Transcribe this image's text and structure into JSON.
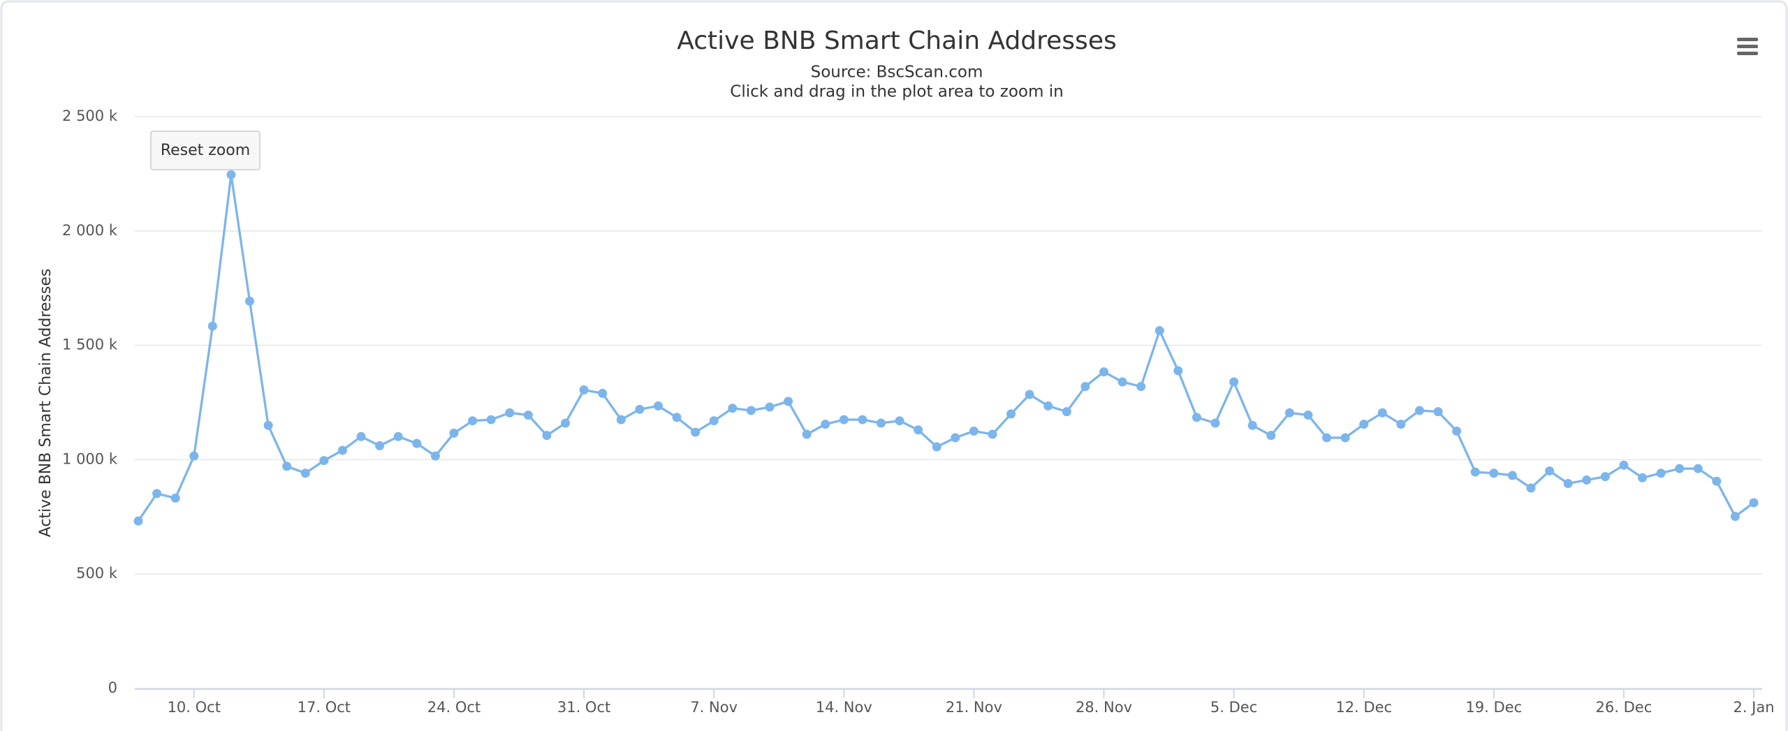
{
  "chart_data": {
    "type": "line",
    "title": "Active BNB Smart Chain Addresses",
    "subtitle": "Source: BscScan.com",
    "instruction": "Click and drag in the plot area to zoom in",
    "y_label": "Active BNB Smart Chain Addresses",
    "reset_button": "Reset zoom",
    "color": "#7cb5ec",
    "grid": true,
    "ylim": [
      0,
      2500
    ],
    "yticks": [
      0,
      {
        "value": 500,
        "label": "500 k"
      },
      {
        "value": 1000,
        "label": "1 000 k"
      },
      {
        "value": 1500,
        "label": "1 500 k"
      },
      {
        "value": 2000,
        "label": "2 000 k"
      },
      {
        "value": 2500,
        "label": "2 500 k"
      }
    ],
    "categories": [
      null,
      null,
      null,
      "10. Oct",
      null,
      null,
      null,
      null,
      null,
      null,
      "17. Oct",
      null,
      null,
      null,
      null,
      null,
      null,
      "24. Oct",
      null,
      null,
      null,
      null,
      null,
      null,
      "31. Oct",
      null,
      null,
      null,
      null,
      null,
      null,
      "7. Nov",
      null,
      null,
      null,
      null,
      null,
      null,
      "14. Nov",
      null,
      null,
      null,
      null,
      null,
      null,
      "21. Nov",
      null,
      null,
      null,
      null,
      null,
      null,
      "28. Nov",
      null,
      null,
      null,
      null,
      null,
      null,
      "5. Dec",
      null,
      null,
      null,
      null,
      null,
      null,
      "12. Dec",
      null,
      null,
      null,
      null,
      null,
      null,
      "19. Dec",
      null,
      null,
      null,
      null,
      null,
      null,
      "26. Dec",
      null,
      null,
      null,
      null,
      null,
      null,
      "2. Jan"
    ],
    "values": [
      732,
      852,
      832,
      1016,
      1584,
      2246,
      1693,
      1150,
      971,
      941,
      996,
      1041,
      1101,
      1061,
      1101,
      1071,
      1016,
      1116,
      1170,
      1175,
      1205,
      1195,
      1106,
      1160,
      1305,
      1290,
      1175,
      1220,
      1235,
      1185,
      1120,
      1170,
      1225,
      1215,
      1230,
      1255,
      1111,
      1155,
      1175,
      1175,
      1160,
      1170,
      1130,
      1056,
      1096,
      1125,
      1111,
      1200,
      1285,
      1235,
      1210,
      1320,
      1384,
      1340,
      1320,
      1564,
      1389,
      1185,
      1160,
      1340,
      1150,
      1106,
      1205,
      1195,
      1096,
      1096,
      1155,
      1205,
      1155,
      1215,
      1210,
      1125,
      946,
      941,
      931,
      876,
      951,
      896,
      911,
      926,
      976,
      921,
      941,
      961,
      961,
      906,
      752,
      812
    ]
  }
}
